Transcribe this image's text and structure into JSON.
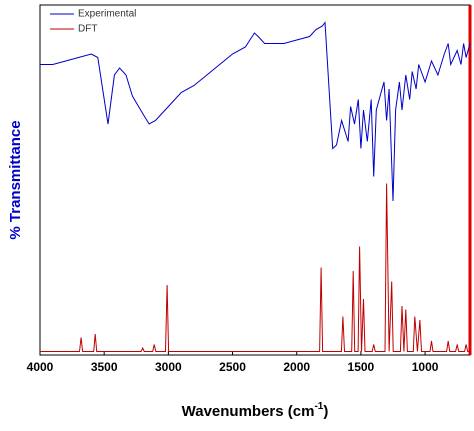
{
  "chart_data": {
    "type": "line",
    "x_label": {
      "text": "Wavenumbers (cm",
      "sup": "-1",
      "end": ")"
    },
    "y_label": "% Transmittance",
    "xlim": [
      4000,
      650
    ],
    "ylim": [
      0,
      100
    ],
    "xticks": [
      4000,
      3500,
      3000,
      2500,
      2000,
      1500,
      1000
    ],
    "legend": "upper left",
    "series": [
      {
        "name": "Experimental",
        "color": "#0000c8",
        "x": [
          4000,
          3900,
          3800,
          3700,
          3600,
          3550,
          3470,
          3420,
          3380,
          3330,
          3280,
          3200,
          3150,
          3100,
          3050,
          3000,
          2950,
          2900,
          2800,
          2700,
          2600,
          2500,
          2400,
          2330,
          2300,
          2250,
          2100,
          2000,
          1900,
          1850,
          1800,
          1780,
          1720,
          1690,
          1650,
          1600,
          1580,
          1550,
          1520,
          1500,
          1480,
          1450,
          1420,
          1400,
          1380,
          1350,
          1320,
          1300,
          1280,
          1250,
          1230,
          1200,
          1180,
          1150,
          1120,
          1100,
          1070,
          1050,
          1000,
          950,
          900,
          850,
          820,
          800,
          750,
          720,
          700,
          680,
          650
        ],
        "values": [
          83,
          83,
          84,
          85,
          86,
          85,
          66,
          80,
          82,
          80,
          74,
          69,
          66,
          67,
          69,
          71,
          73,
          75,
          77,
          80,
          83,
          86,
          88,
          92,
          91,
          89,
          89,
          90,
          91,
          93,
          94,
          95,
          59,
          60,
          67,
          61,
          71,
          66,
          73,
          59,
          70,
          61,
          73,
          51,
          70,
          74,
          78,
          67,
          76,
          44,
          70,
          78,
          70,
          80,
          73,
          81,
          76,
          83,
          78,
          84,
          80,
          86,
          89,
          83,
          87,
          83,
          89,
          85,
          89
        ]
      },
      {
        "name": "DFT",
        "color": "#c00000",
        "x": [
          4000,
          3692,
          3680,
          3668,
          3582,
          3570,
          3558,
          3212,
          3200,
          3188,
          3122,
          3110,
          3098,
          3022,
          3010,
          2998,
          1822,
          1810,
          1798,
          1652,
          1640,
          1628,
          1572,
          1560,
          1548,
          1522,
          1510,
          1495,
          1480,
          1468,
          1412,
          1400,
          1388,
          1312,
          1300,
          1280,
          1260,
          1248,
          1192,
          1180,
          1165,
          1150,
          1138,
          1092,
          1080,
          1060,
          1040,
          1028,
          962,
          950,
          938,
          832,
          820,
          808,
          762,
          750,
          738,
          692,
          680,
          668,
          650
        ],
        "values": [
          1,
          1,
          5,
          1,
          1,
          6,
          1,
          1,
          2,
          1,
          1,
          3,
          1,
          1,
          20,
          1,
          1,
          25,
          1,
          1,
          11,
          1,
          1,
          24,
          1,
          1,
          31,
          1,
          16,
          1,
          1,
          3,
          1,
          1,
          49,
          1,
          21,
          1,
          1,
          14,
          1,
          13,
          1,
          1,
          11,
          1,
          10,
          1,
          1,
          4,
          1,
          1,
          4,
          1,
          1,
          3,
          1,
          1,
          3,
          1,
          1
        ]
      }
    ]
  }
}
